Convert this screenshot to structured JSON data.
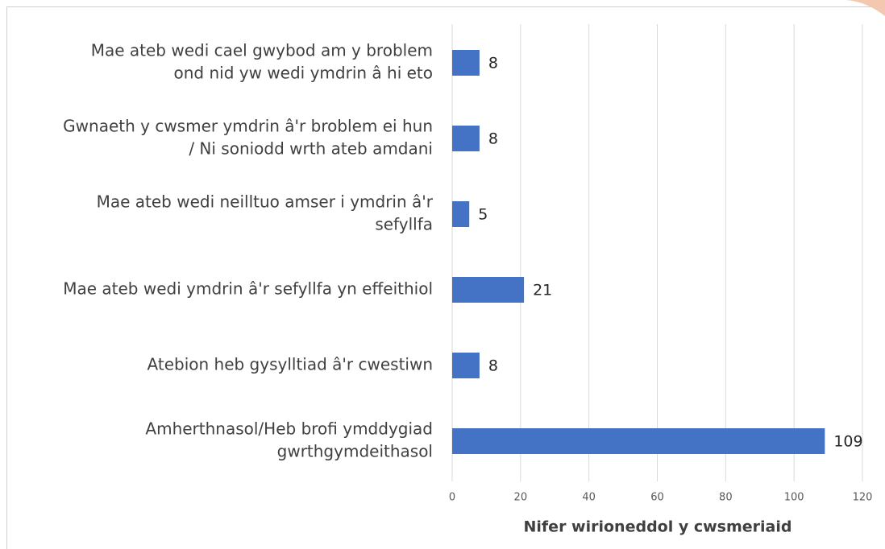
{
  "chart_data": {
    "type": "bar",
    "orientation": "horizontal",
    "categories": [
      [
        "Mae ateb wedi cael gwybod am y broblem",
        "ond nid yw wedi ymdrin â hi eto"
      ],
      [
        "Gwnaeth y cwsmer ymdrin â'r broblem ei hun",
        "/ Ni soniodd wrth ateb amdani"
      ],
      [
        "Mae ateb wedi neilltuo amser i ymdrin â'r",
        "sefyllfa"
      ],
      [
        "Mae ateb wedi ymdrin â'r sefyllfa yn effeithiol"
      ],
      [
        "Atebion heb gysylltiad â'r cwestiwn"
      ],
      [
        "Amherthnasol/Heb brofi ymddygiad",
        "gwrthgymdeithasol"
      ]
    ],
    "values": [
      8,
      8,
      5,
      21,
      8,
      109
    ],
    "color": "#4472c4",
    "xlim": [
      0,
      120
    ],
    "xticks": [
      0,
      20,
      40,
      60,
      80,
      100,
      120
    ],
    "grid": true,
    "xlabel": "Nifer wirioneddol y cwsmeriaid"
  }
}
